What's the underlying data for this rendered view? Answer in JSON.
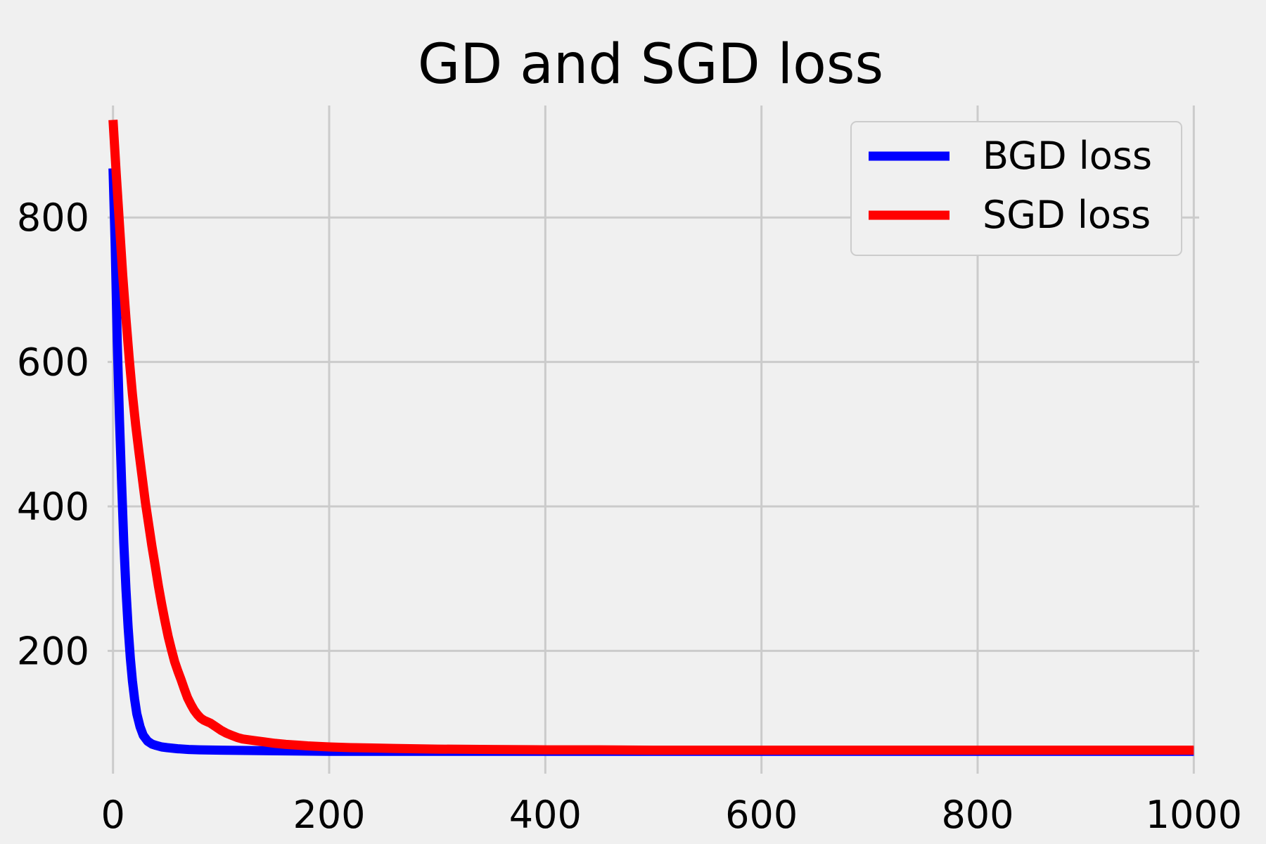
{
  "chart_data": {
    "type": "line",
    "title": "GD and SGD loss",
    "xlabel": "",
    "ylabel": "",
    "xlim": [
      -5,
      1005
    ],
    "ylim": [
      30,
      955
    ],
    "xticks": [
      0,
      200,
      400,
      600,
      800,
      1000
    ],
    "yticks": [
      200,
      400,
      600,
      800
    ],
    "grid": true,
    "legend_position": "top-right",
    "series": [
      {
        "name": "BGD loss",
        "color": "#0000ff",
        "x": [
          0,
          2,
          4,
          6,
          8,
          10,
          12,
          14,
          16,
          18,
          20,
          22,
          25,
          28,
          32,
          36,
          40,
          45,
          50,
          60,
          70,
          80,
          100,
          130,
          160,
          200,
          250,
          300,
          400,
          500,
          600,
          700,
          800,
          900,
          1000
        ],
        "y": [
          868,
          760,
          625,
          520,
          430,
          350,
          285,
          232,
          190,
          158,
          133,
          113,
          95,
          83,
          75,
          71,
          69,
          67,
          66,
          64.5,
          63.5,
          63,
          62.5,
          62,
          61.5,
          61,
          61,
          61,
          61,
          61,
          61,
          61,
          61,
          61,
          61
        ]
      },
      {
        "name": "SGD loss",
        "color": "#ff0000",
        "x": [
          0,
          3,
          6,
          9,
          12,
          15,
          18,
          21,
          24,
          27,
          30,
          33,
          36,
          39,
          42,
          45,
          48,
          51,
          54,
          57,
          60,
          63,
          66,
          69,
          72,
          75,
          78,
          81,
          84,
          87,
          90,
          95,
          100,
          105,
          110,
          115,
          120,
          130,
          140,
          150,
          160,
          170,
          180,
          200,
          220,
          240,
          260,
          280,
          300,
          350,
          400,
          450,
          500,
          550,
          600,
          650,
          700,
          750,
          800,
          850,
          900,
          950,
          1000
        ],
        "y": [
          935,
          860,
          790,
          720,
          660,
          605,
          555,
          512,
          475,
          440,
          405,
          375,
          345,
          318,
          290,
          265,
          242,
          220,
          202,
          185,
          172,
          160,
          147,
          135,
          126,
          118,
          112,
          107,
          104,
          102,
          100,
          95,
          90,
          86,
          83,
          80,
          78,
          76,
          74,
          72,
          70.5,
          69.5,
          68.5,
          67,
          66,
          65.5,
          65,
          64.5,
          64,
          63.5,
          63,
          63,
          62.5,
          62.5,
          62.5,
          62.5,
          62.5,
          62.5,
          62.5,
          62.5,
          62.5,
          62.5,
          62.5
        ]
      }
    ]
  }
}
